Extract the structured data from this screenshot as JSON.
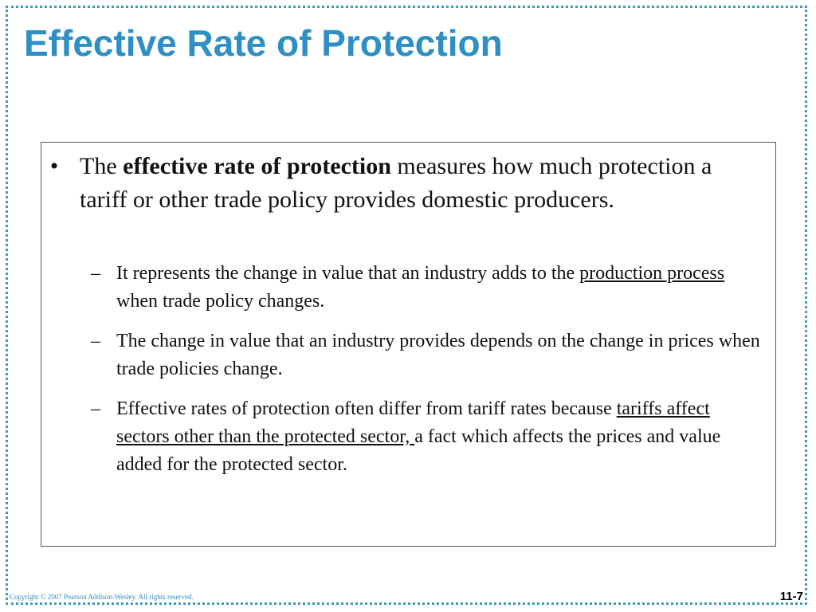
{
  "slide": {
    "title": "Effective Rate of Protection",
    "bullet": {
      "marker": "•",
      "pre": "The ",
      "bold": "effective rate of protection",
      "post": " measures how much protection a tariff or other trade policy provides domestic producers."
    },
    "subbullets": [
      {
        "marker": "–",
        "pre": "It represents the change in value that an industry adds to the ",
        "underlined": "production process ",
        "post": "when trade policy changes."
      },
      {
        "marker": "–",
        "pre": "The change in value that an industry provides depends on the change in prices when trade policies change.",
        "underlined": "",
        "post": ""
      },
      {
        "marker": "–",
        "pre": "Effective rates of protection often differ from tariff rates because ",
        "underlined": "tariffs affect sectors other than the protected sector, ",
        "post": "a fact which affects the prices and value added for the protected sector."
      }
    ],
    "footer": "Copyright © 2007 Pearson Addison-Wesley. All rights reserved.",
    "page_number": "11-7"
  },
  "colors": {
    "title": "#2e8fc4",
    "frame": "#3a9bbf"
  }
}
